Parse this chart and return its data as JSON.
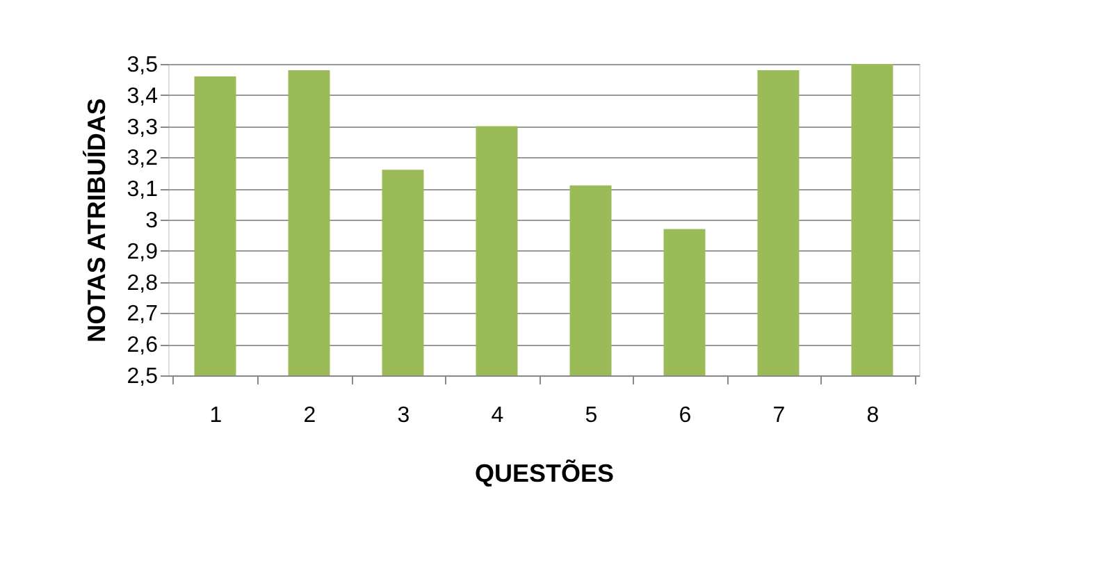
{
  "chart_data": {
    "type": "bar",
    "xlabel": "QUESTÕES",
    "ylabel": "NOTAS ATRIBUÍDAS",
    "categories": [
      "1",
      "2",
      "3",
      "4",
      "5",
      "6",
      "7",
      "8"
    ],
    "values": [
      3.46,
      3.48,
      3.16,
      3.3,
      3.11,
      2.97,
      3.48,
      3.5
    ],
    "color": "#9bbb59",
    "ylim": [
      2.5,
      3.5
    ],
    "yticks": [
      {
        "value": 2.5,
        "label": "2,5"
      },
      {
        "value": 2.6,
        "label": "2,6"
      },
      {
        "value": 2.7,
        "label": "2,7"
      },
      {
        "value": 2.8,
        "label": "2,8"
      },
      {
        "value": 2.9,
        "label": "2,9"
      },
      3,
      {
        "value": 3.1,
        "label": "3,1"
      },
      {
        "value": 3.2,
        "label": "3,2"
      },
      {
        "value": 3.3,
        "label": "3,3"
      },
      {
        "value": 3.4,
        "label": "3,4"
      },
      {
        "value": 3.5,
        "label": "3,5"
      }
    ],
    "grid": "y"
  }
}
